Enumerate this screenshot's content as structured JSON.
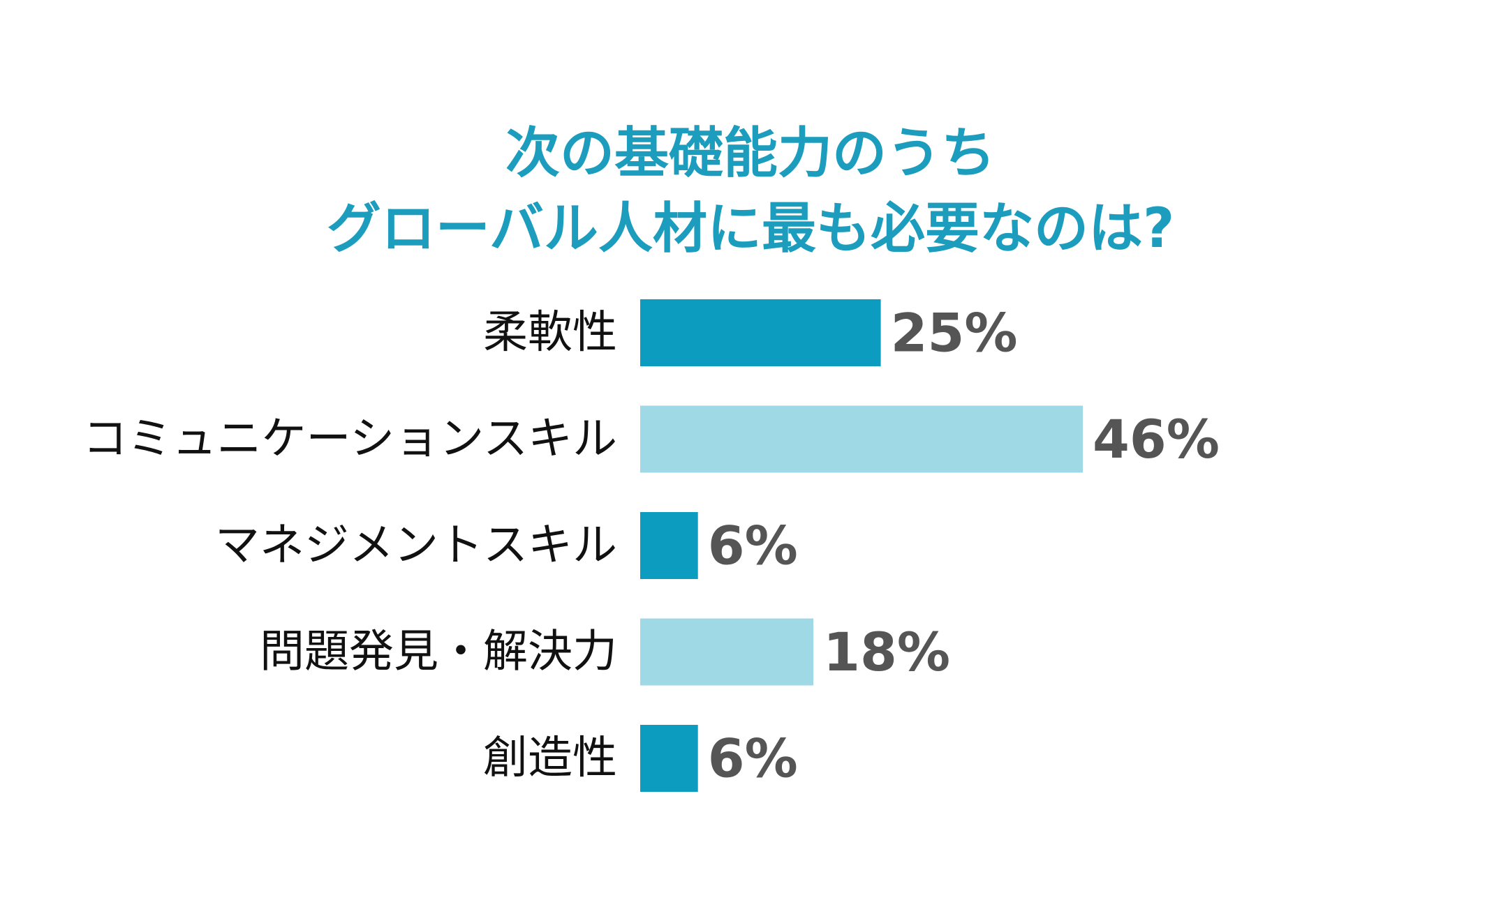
{
  "chart_data": {
    "type": "bar",
    "orientation": "horizontal",
    "title": "次の基礎能力のうち\nグローバル人材に最も必要なのは?",
    "categories": [
      "柔軟性",
      "コミュニケーションスキル",
      "マネジメントスキル",
      "問題発見・解決力",
      "創造性"
    ],
    "values": [
      25,
      46,
      6,
      18,
      6
    ],
    "value_labels": [
      "25%",
      "46%",
      "6%",
      "18%",
      "6%"
    ],
    "unit": "%",
    "xlim": [
      0,
      46
    ],
    "grid": false,
    "legend": "none",
    "colors": {
      "title": "#1c9dbd",
      "bar_dark": "#0b9cbf",
      "bar_light": "#a0d9e6",
      "category_text": "#111111",
      "value_text": "#555555",
      "bar_pattern": [
        "bar_dark",
        "bar_light",
        "bar_dark",
        "bar_light",
        "bar_dark"
      ]
    }
  }
}
